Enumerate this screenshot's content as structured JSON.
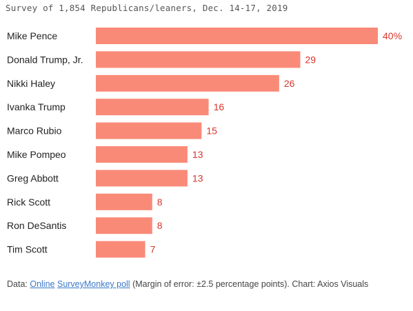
{
  "chart_data": {
    "type": "bar",
    "orientation": "horizontal",
    "title": "",
    "subtitle": "Survey of 1,854 Republicans/leaners, Dec. 14-17, 2019",
    "categories": [
      "Mike Pence",
      "Donald Trump, Jr.",
      "Nikki Haley",
      "Ivanka Trump",
      "Marco Rubio",
      "Mike Pompeo",
      "Greg Abbott",
      "Rick Scott",
      "Ron DeSantis",
      "Tim Scott"
    ],
    "values": [
      40,
      29,
      26,
      16,
      15,
      13,
      13,
      8,
      8,
      7
    ],
    "value_labels": [
      "40%",
      "29",
      "26",
      "16",
      "15",
      "13",
      "13",
      "8",
      "8",
      "7"
    ],
    "xlim": [
      0,
      40
    ],
    "xlabel": "",
    "ylabel": "",
    "grid": false,
    "legend": "none",
    "colors": {
      "bar": "#fa8a78",
      "value_label": "#d9342b"
    }
  },
  "footer": {
    "prefix": "Data: ",
    "link1": "Online",
    "space": " ",
    "link2": "SurveyMonkey poll",
    "suffix": " (Margin of error: ±2.5 percentage points). Chart: Axios Visuals"
  }
}
